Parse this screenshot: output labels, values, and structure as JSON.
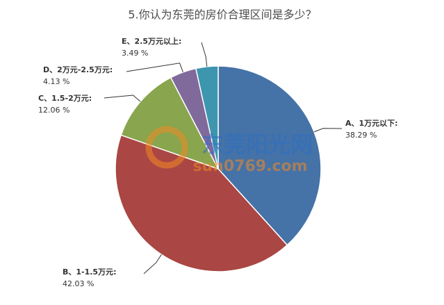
{
  "chart_data": {
    "type": "pie",
    "title": "5.你认为东莞的房价合理区间是多少？",
    "categories": [
      "A、1万元以下:",
      "B、1-1.5万元:",
      "C、1.5-2万元:",
      "D、2万元-2.5万元:",
      "E、2.5万元以上:"
    ],
    "values": [
      38.29,
      42.03,
      12.06,
      4.13,
      3.49
    ],
    "value_labels": [
      "38.29 %",
      "42.03 %",
      "12.06 %",
      "4.13 %",
      "3.49 %"
    ],
    "colors": [
      "#4572a7",
      "#aa4643",
      "#89a54e",
      "#80699b",
      "#3d96ae"
    ],
    "watermark": [
      "东莞阳光网",
      "sun0769.com"
    ]
  }
}
